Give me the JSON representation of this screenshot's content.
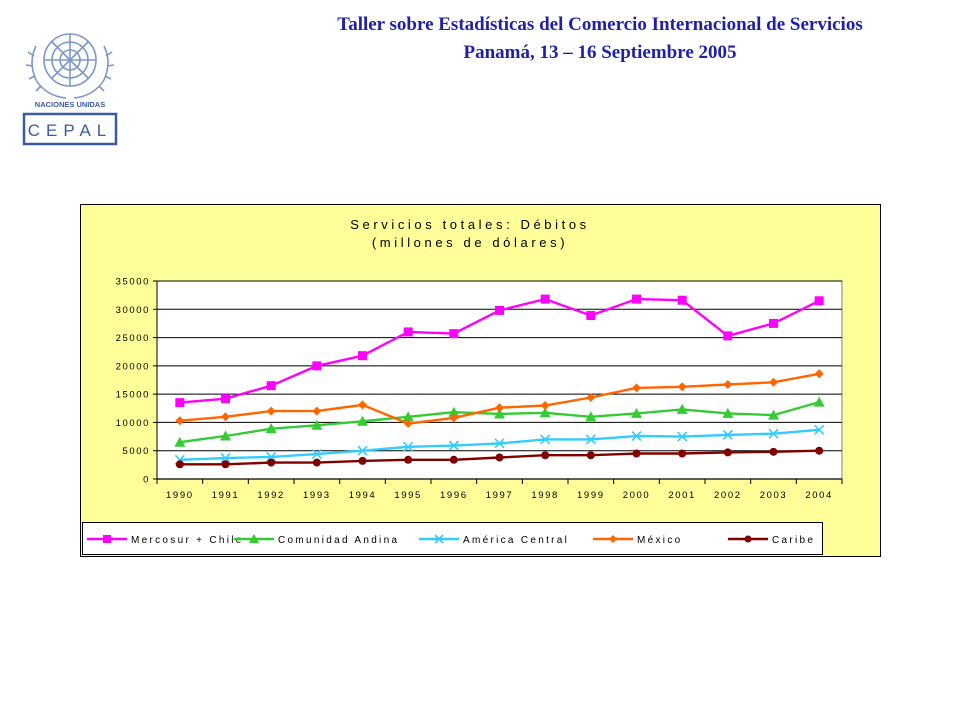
{
  "header": {
    "line1": "Taller sobre Estadísticas del Comercio Internacional de Servicios",
    "line2": "Panamá, 13 – 16 Septiembre 2005"
  },
  "logo": {
    "org_name": "NACIONES UNIDAS",
    "acronym": "CEPAL",
    "icon": "un-emblem-icon",
    "colors": {
      "emblem": "#7b97c9",
      "box": "#3a5aa8"
    }
  },
  "chart_data": {
    "type": "line",
    "title": "Servicios totales: Débitos",
    "subtitle": "(millones de dólares)",
    "xlabel": "",
    "ylabel": "",
    "ylim": [
      0,
      35000
    ],
    "yticks": [
      0,
      5000,
      10000,
      15000,
      20000,
      25000,
      30000,
      35000
    ],
    "grid": true,
    "legend_position": "bottom",
    "background": "#ffff99",
    "categories": [
      "1990",
      "1991",
      "1992",
      "1993",
      "1994",
      "1995",
      "1996",
      "1997",
      "1998",
      "1999",
      "2000",
      "2001",
      "2002",
      "2003",
      "2004"
    ],
    "series": [
      {
        "name": "Mercosur + Chile",
        "color": "#ff00ff",
        "marker": "square",
        "values": [
          13500,
          14200,
          16500,
          20000,
          21800,
          26000,
          25700,
          29800,
          31800,
          28900,
          31800,
          31600,
          25300,
          27500,
          31500
        ]
      },
      {
        "name": "Comunidad Andina",
        "color": "#33cc33",
        "marker": "triangle",
        "values": [
          6500,
          7600,
          8900,
          9500,
          10200,
          11000,
          11800,
          11500,
          11700,
          11000,
          11600,
          12300,
          11600,
          11300,
          13600
        ]
      },
      {
        "name": "América Central",
        "color": "#33ccff",
        "marker": "x",
        "values": [
          3400,
          3700,
          3900,
          4400,
          5000,
          5700,
          5900,
          6300,
          7000,
          7000,
          7600,
          7500,
          7800,
          8000,
          8700
        ]
      },
      {
        "name": "México",
        "color": "#ff6600",
        "marker": "diamond",
        "values": [
          10300,
          11000,
          12000,
          12000,
          13100,
          9800,
          10800,
          12600,
          13000,
          14400,
          16100,
          16300,
          16700,
          17100,
          18600
        ]
      },
      {
        "name": "Caribe",
        "color": "#800000",
        "marker": "circle",
        "values": [
          2600,
          2600,
          2900,
          2900,
          3200,
          3400,
          3400,
          3800,
          4200,
          4200,
          4500,
          4500,
          4700,
          4800,
          5000
        ]
      }
    ]
  }
}
